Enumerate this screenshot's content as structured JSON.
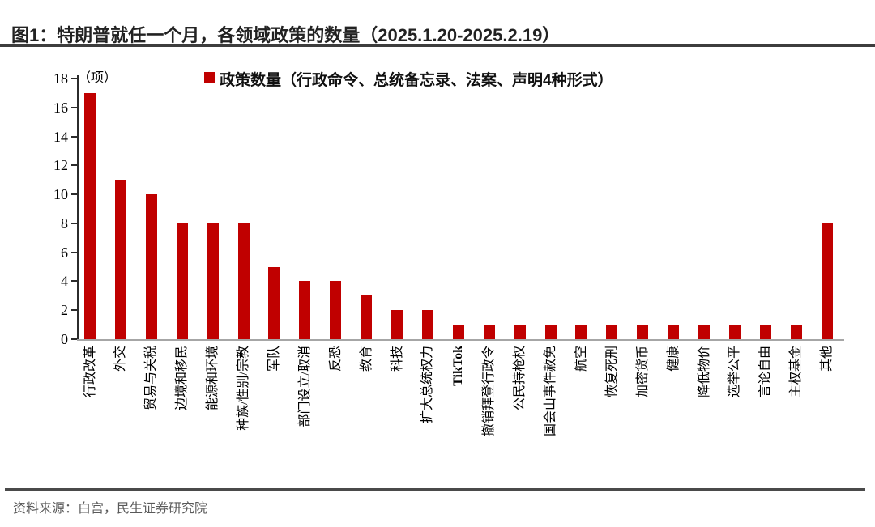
{
  "figure": {
    "title": "图1：特朗普就任一个月，各领域政策的数量（2025.1.20-2025.2.19）",
    "source": "资料来源：白宫，民生证券研究院"
  },
  "chart_data": {
    "type": "bar",
    "title": "特朗普就任一个月，各领域政策的数量（2025.1.20-2025.2.19）",
    "unit_label": "（项）",
    "legend": "政策数量（行政命令、总统备忘录、法案、声明4种形式）",
    "legend_position": "top",
    "grid": false,
    "ylim": [
      0,
      18
    ],
    "ytick_step": 2,
    "xlabel": "",
    "ylabel": "（项）",
    "categories": [
      "行政改革",
      "外交",
      "贸易与关税",
      "边境和移民",
      "能源和环境",
      "种族/性别/宗教",
      "军队",
      "部门设立/取消",
      "反恐",
      "教育",
      "科技",
      "扩大总统权力",
      "TikTok",
      "撤销拜登行政令",
      "公民持枪权",
      "国会山事件赦免",
      "航空",
      "恢复死刑",
      "加密货币",
      "健康",
      "降低物价",
      "选举公平",
      "言论自由",
      "主权基金",
      "其他"
    ],
    "values": [
      17,
      11,
      10,
      8,
      8,
      8,
      5,
      4,
      4,
      3,
      2,
      2,
      1,
      1,
      1,
      1,
      1,
      1,
      1,
      1,
      1,
      1,
      1,
      1,
      8
    ],
    "bold_categories": [
      "TikTok"
    ],
    "colors": {
      "bar": "#C00000",
      "x_axis": "#A6A6A6",
      "y_axis": "#2B2B2B",
      "title_rule": "#3D3D3D",
      "source_text": "#595959"
    }
  }
}
